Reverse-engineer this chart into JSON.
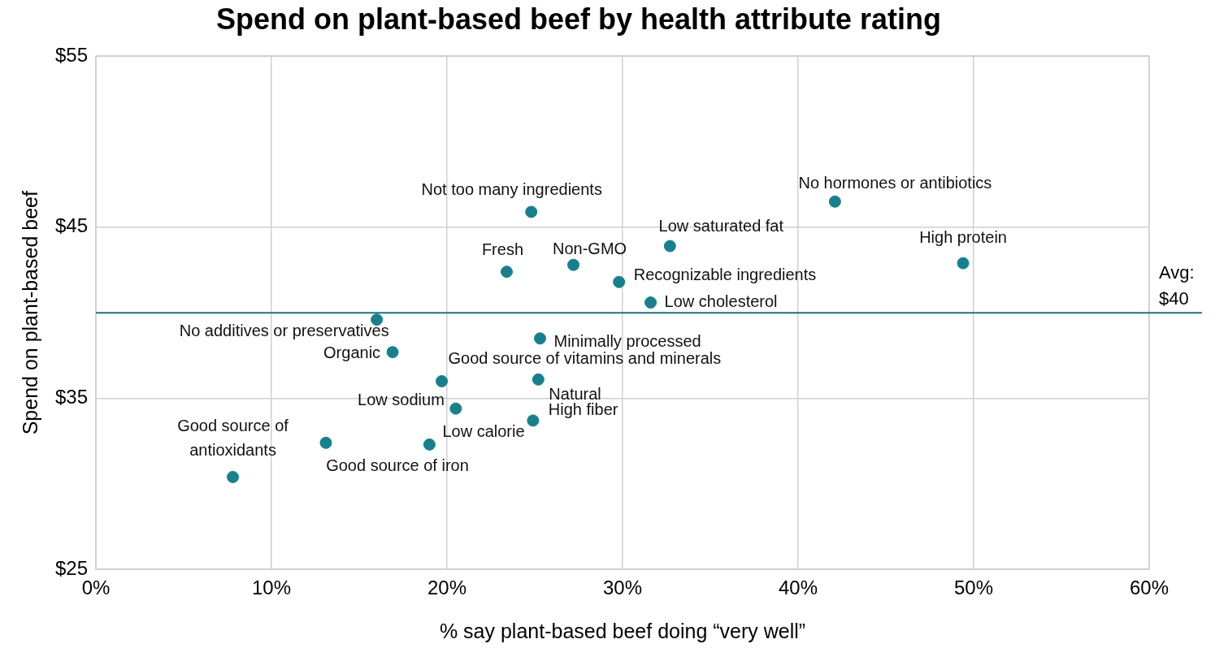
{
  "chart_data": {
    "type": "scatter",
    "title": "Spend on plant-based beef by health attribute rating",
    "xlabel": "% say plant-based beef doing “very well”",
    "ylabel": "Spend on plant-based beef",
    "x": [
      7.8,
      13.1,
      19.0,
      20.5,
      19.7,
      25.2,
      24.9,
      16.9,
      16.0,
      25.3,
      31.6,
      29.8,
      27.2,
      23.4,
      24.8,
      32.7,
      42.1,
      49.4
    ],
    "values": [
      30.4,
      32.4,
      32.3,
      34.4,
      36.0,
      36.1,
      33.7,
      37.7,
      39.6,
      38.5,
      40.6,
      41.8,
      42.8,
      42.4,
      45.9,
      43.9,
      46.5,
      42.9
    ],
    "color": "#17808c",
    "marker": "circle",
    "grid": true,
    "legend": false,
    "xlim": [
      0,
      60
    ],
    "xticks": [
      {
        "value": 0,
        "label": "0%"
      },
      {
        "value": 10,
        "label": "10%"
      },
      {
        "value": 20,
        "label": "20%"
      },
      {
        "value": 30,
        "label": "30%"
      },
      {
        "value": 40,
        "label": "40%"
      },
      {
        "value": 50,
        "label": "50%"
      },
      {
        "value": 60,
        "label": "60%"
      }
    ],
    "ylim": [
      25,
      55
    ],
    "yticks": [
      {
        "value": 25,
        "label": "$25"
      },
      {
        "value": 35,
        "label": "$35"
      },
      {
        "value": 45,
        "label": "$45"
      },
      {
        "value": 55,
        "label": "$55"
      }
    ],
    "ref_lines": [
      {
        "axis": "y",
        "value": 40,
        "label": "Avg: $40",
        "color": "#1f6f7e"
      }
    ],
    "annotations": [
      {
        "text": "Good source of antioxidants",
        "x": 7.8,
        "y": 30.4
      },
      {
        "text": "Good source of iron",
        "x": 13.1,
        "y": 32.4
      },
      {
        "text": "Low calorie",
        "x": 19.0,
        "y": 32.3
      },
      {
        "text": "Low sodium",
        "x": 20.5,
        "y": 34.4
      },
      {
        "text": "Good source of vitamins and minerals",
        "x": 19.7,
        "y": 36.0
      },
      {
        "text": "Natural",
        "x": 25.2,
        "y": 36.1
      },
      {
        "text": "High fiber",
        "x": 24.9,
        "y": 33.7
      },
      {
        "text": "Organic",
        "x": 16.9,
        "y": 37.7
      },
      {
        "text": "No additives or preservatives",
        "x": 16.0,
        "y": 39.6
      },
      {
        "text": "Minimally processed",
        "x": 25.3,
        "y": 38.5
      },
      {
        "text": "Low cholesterol",
        "x": 31.6,
        "y": 40.6
      },
      {
        "text": "Recognizable ingredients",
        "x": 29.8,
        "y": 41.8
      },
      {
        "text": "Non-GMO",
        "x": 27.2,
        "y": 42.8
      },
      {
        "text": "Fresh",
        "x": 23.4,
        "y": 42.4
      },
      {
        "text": "Not too many ingredients",
        "x": 24.8,
        "y": 45.9
      },
      {
        "text": "Low saturated fat",
        "x": 32.7,
        "y": 43.9
      },
      {
        "text": "No hormones or antibiotics",
        "x": 42.1,
        "y": 46.5
      },
      {
        "text": "High protein",
        "x": 49.4,
        "y": 42.9
      }
    ]
  }
}
